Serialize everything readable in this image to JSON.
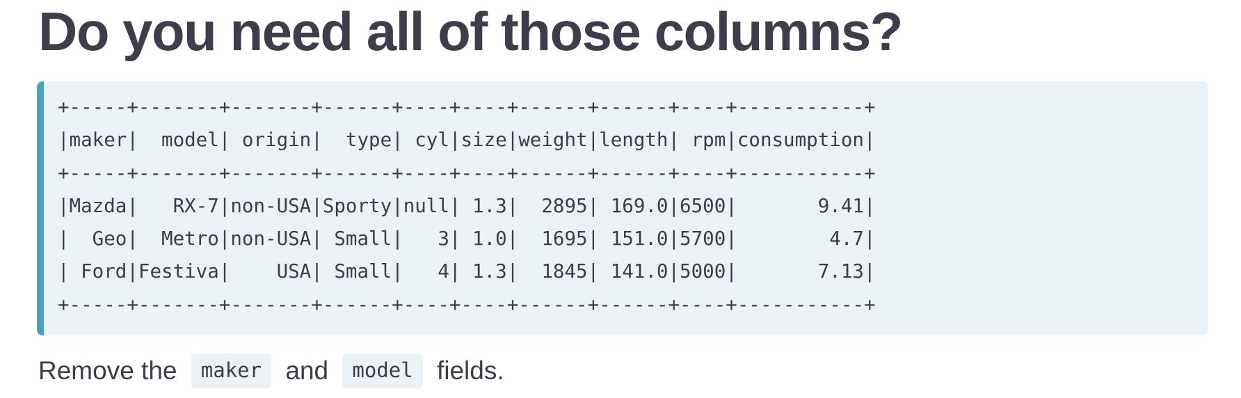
{
  "slide": {
    "title": "Do you need all of those columns?",
    "code_block": {
      "lines": [
        "+-----+-------+-------+------+----+----+------+------+----+-----------+",
        "|maker|  model| origin|  type| cyl|size|weight|length| rpm|consumption|",
        "+-----+-------+-------+------+----+----+------+------+----+-----------+",
        "|Mazda|   RX-7|non-USA|Sporty|null| 1.3|  2895| 169.0|6500|       9.41|",
        "|  Geo|  Metro|non-USA| Small|   3| 1.0|  1695| 151.0|5700|        4.7|",
        "| Ford|Festiva|    USA| Small|   4| 1.3|  1845| 141.0|5000|       7.13|",
        "+-----+-------+-------+------+----+----+------+------+----+-----------+"
      ]
    },
    "instruction": {
      "prefix": "Remove the",
      "code1": "maker",
      "middle": "and",
      "code2": "model",
      "suffix": "fields."
    }
  },
  "colors": {
    "title_text": "#3c3e4b",
    "code_background": "#ebf2f6",
    "code_border_accent": "#4aa0bd",
    "body_text": "#3b3d4a"
  }
}
